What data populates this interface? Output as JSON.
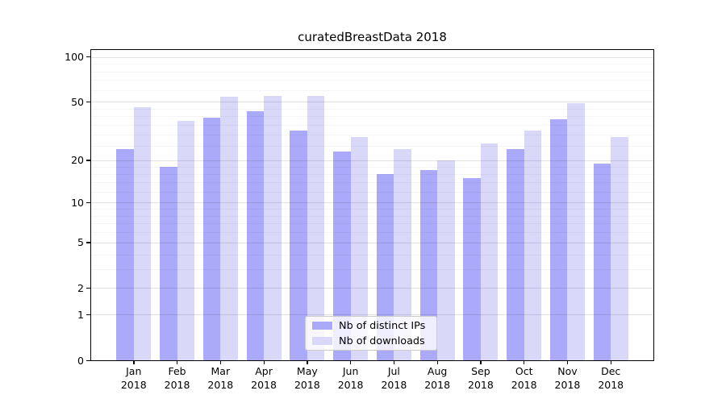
{
  "chart_data": {
    "type": "bar",
    "title": "curatedBreastData 2018",
    "categories": [
      "Jan",
      "Feb",
      "Mar",
      "Apr",
      "May",
      "Jun",
      "Jul",
      "Aug",
      "Sep",
      "Oct",
      "Nov",
      "Dec"
    ],
    "year_label": "2018",
    "series": [
      {
        "name": "Nb of distinct IPs",
        "color": "#abaafa",
        "values": [
          24,
          18,
          39,
          43,
          32,
          23,
          16,
          17,
          15,
          24,
          38,
          19
        ]
      },
      {
        "name": "Nb of downloads",
        "color": "#d9d8f8",
        "values": [
          46,
          37,
          54,
          55,
          55,
          29,
          24,
          20,
          26,
          32,
          49,
          29
        ]
      }
    ],
    "yscale": "log10(1+v)",
    "y_ticks": [
      0,
      1,
      2,
      5,
      10,
      20,
      50,
      100
    ],
    "y_minor_ticks": [
      3,
      4,
      6,
      7,
      8,
      9,
      12,
      14,
      16,
      18,
      25,
      30,
      35,
      40,
      45,
      60,
      70,
      80,
      90
    ],
    "ylim_log1p": [
      0,
      2.056
    ],
    "xlabel": "",
    "ylabel": "",
    "grid": "horizontal",
    "legend_position": "lower center",
    "frame_color": "#000000",
    "background_color": "#ffffff"
  }
}
